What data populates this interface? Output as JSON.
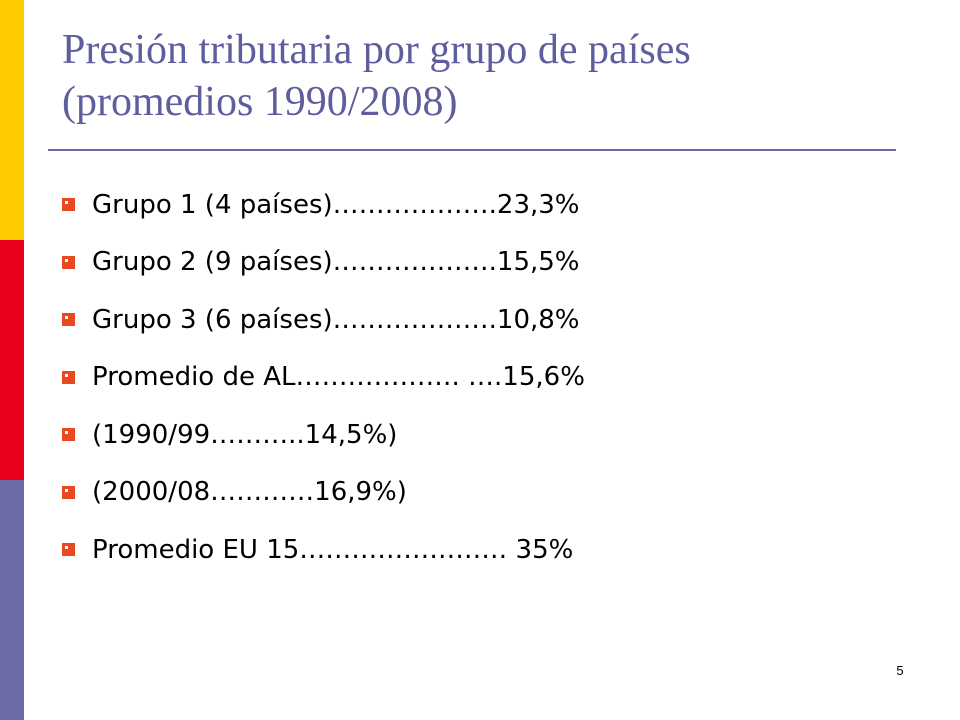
{
  "colors": {
    "accent_yellow": "#FFCC00",
    "accent_red": "#E8001C",
    "accent_blue": "#6B6BA8",
    "title_color": "#5E5E9E",
    "bullet_color": "#E8491E",
    "rule_color": "#6B6BA8"
  },
  "slide": {
    "title_line1": "Presión tributaria por grupo de países",
    "title_line2": "(promedios 1990/2008)",
    "bullet_icon": "square-bullet-icon",
    "items": [
      "Grupo 1 (4 países)……………….23,3%",
      "Grupo 2 (9 países)……………….15,5%",
      "Grupo 3 (6 países)……………….10,8%",
      "Promedio de AL………………. ….15,6%",
      "(1990/99………..14,5%)",
      "(2000/08…………16,9%)",
      "Promedio EU 15…………………… 35%"
    ],
    "page_number": "5"
  }
}
